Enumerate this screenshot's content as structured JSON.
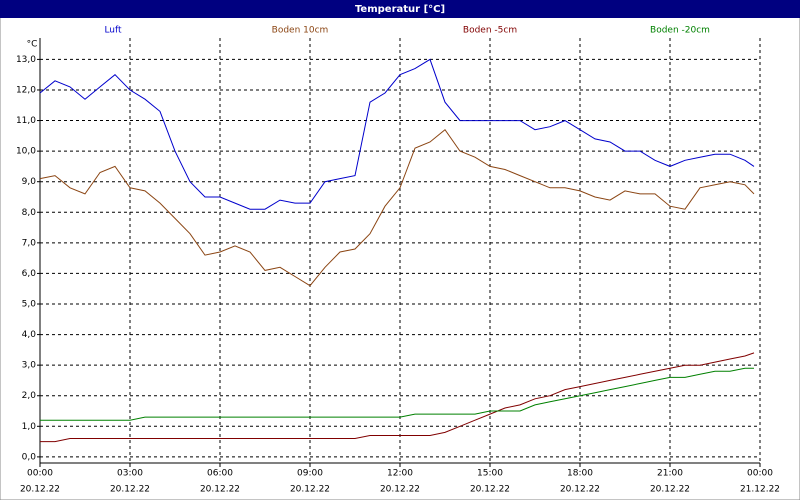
{
  "chart_data": {
    "type": "line",
    "title": "Temperatur [°C]",
    "y_unit": "°C",
    "x": [
      0,
      0.5,
      1,
      1.5,
      2,
      2.5,
      3,
      3.5,
      4,
      4.5,
      5,
      5.5,
      6,
      6.5,
      7,
      7.5,
      8,
      8.5,
      9,
      9.5,
      10,
      10.5,
      11,
      11.5,
      12,
      12.5,
      13,
      13.5,
      14,
      14.5,
      15,
      15.5,
      16,
      16.5,
      17,
      17.5,
      18,
      18.5,
      19,
      19.5,
      20,
      20.5,
      21,
      21.5,
      22,
      22.5,
      23,
      23.5,
      23.8
    ],
    "series": [
      {
        "name": "Luft",
        "color": "#0000cc",
        "values": [
          11.9,
          12.3,
          12.1,
          11.7,
          12.1,
          12.5,
          12.0,
          11.7,
          11.3,
          10.0,
          9.0,
          8.5,
          8.5,
          8.3,
          8.1,
          8.1,
          8.4,
          8.3,
          8.3,
          9.0,
          9.1,
          9.2,
          11.6,
          11.9,
          12.5,
          12.7,
          13.0,
          11.6,
          11.0,
          11.0,
          11.0,
          11.0,
          11.0,
          10.7,
          10.8,
          11.0,
          10.7,
          10.4,
          10.3,
          10.0,
          10.0,
          9.7,
          9.5,
          9.7,
          9.8,
          9.9,
          9.9,
          9.7,
          9.5
        ]
      },
      {
        "name": "Boden 10cm",
        "color": "#8b4513",
        "values": [
          9.1,
          9.2,
          8.8,
          8.6,
          9.3,
          9.5,
          8.8,
          8.7,
          8.3,
          7.8,
          7.3,
          6.6,
          6.7,
          6.9,
          6.7,
          6.1,
          6.2,
          5.9,
          5.6,
          6.2,
          6.7,
          6.8,
          7.3,
          8.2,
          8.8,
          10.1,
          10.3,
          10.7,
          10.0,
          9.8,
          9.5,
          9.4,
          9.2,
          9.0,
          8.8,
          8.8,
          8.7,
          8.5,
          8.4,
          8.7,
          8.6,
          8.6,
          8.2,
          8.1,
          8.8,
          8.9,
          9.0,
          8.9,
          8.6
        ]
      },
      {
        "name": "Boden -5cm",
        "color": "#800000",
        "values": [
          0.5,
          0.5,
          0.6,
          0.6,
          0.6,
          0.6,
          0.6,
          0.6,
          0.6,
          0.6,
          0.6,
          0.6,
          0.6,
          0.6,
          0.6,
          0.6,
          0.6,
          0.6,
          0.6,
          0.6,
          0.6,
          0.6,
          0.7,
          0.7,
          0.7,
          0.7,
          0.7,
          0.8,
          1.0,
          1.2,
          1.4,
          1.6,
          1.7,
          1.9,
          2.0,
          2.2,
          2.3,
          2.4,
          2.5,
          2.6,
          2.7,
          2.8,
          2.9,
          3.0,
          3.0,
          3.1,
          3.2,
          3.3,
          3.4
        ]
      },
      {
        "name": "Boden -20cm",
        "color": "#008000",
        "values": [
          1.2,
          1.2,
          1.2,
          1.2,
          1.2,
          1.2,
          1.2,
          1.3,
          1.3,
          1.3,
          1.3,
          1.3,
          1.3,
          1.3,
          1.3,
          1.3,
          1.3,
          1.3,
          1.3,
          1.3,
          1.3,
          1.3,
          1.3,
          1.3,
          1.3,
          1.4,
          1.4,
          1.4,
          1.4,
          1.4,
          1.5,
          1.5,
          1.5,
          1.7,
          1.8,
          1.9,
          2.0,
          2.1,
          2.2,
          2.3,
          2.4,
          2.5,
          2.6,
          2.6,
          2.7,
          2.8,
          2.8,
          2.9,
          2.9
        ]
      }
    ],
    "xlim": [
      0,
      24
    ],
    "xticks": [
      {
        "value": 0,
        "label": "00:00",
        "date": "20.12.22"
      },
      {
        "value": 3,
        "label": "03:00",
        "date": "20.12.22"
      },
      {
        "value": 6,
        "label": "06:00",
        "date": "20.12.22"
      },
      {
        "value": 9,
        "label": "09:00",
        "date": "20.12.22"
      },
      {
        "value": 12,
        "label": "12:00",
        "date": "20.12.22"
      },
      {
        "value": 15,
        "label": "15:00",
        "date": "20.12.22"
      },
      {
        "value": 18,
        "label": "18:00",
        "date": "20.12.22"
      },
      {
        "value": 21,
        "label": "21:00",
        "date": "20.12.22"
      },
      {
        "value": 24,
        "label": "00:00",
        "date": "21.12.22"
      }
    ],
    "ylim": [
      -0.2,
      13.7
    ],
    "yticks": [
      {
        "value": 0,
        "label": "0,0"
      },
      {
        "value": 1,
        "label": "1,0"
      },
      {
        "value": 2,
        "label": "2,0"
      },
      {
        "value": 3,
        "label": "3,0"
      },
      {
        "value": 4,
        "label": "4,0"
      },
      {
        "value": 5,
        "label": "5,0"
      },
      {
        "value": 6,
        "label": "6,0"
      },
      {
        "value": 7,
        "label": "7,0"
      },
      {
        "value": 8,
        "label": "8,0"
      },
      {
        "value": 9,
        "label": "9,0"
      },
      {
        "value": 10,
        "label": "10,0"
      },
      {
        "value": 11,
        "label": "11,0"
      },
      {
        "value": 12,
        "label": "12,0"
      },
      {
        "value": 13,
        "label": "13,0"
      }
    ],
    "grid": true
  }
}
